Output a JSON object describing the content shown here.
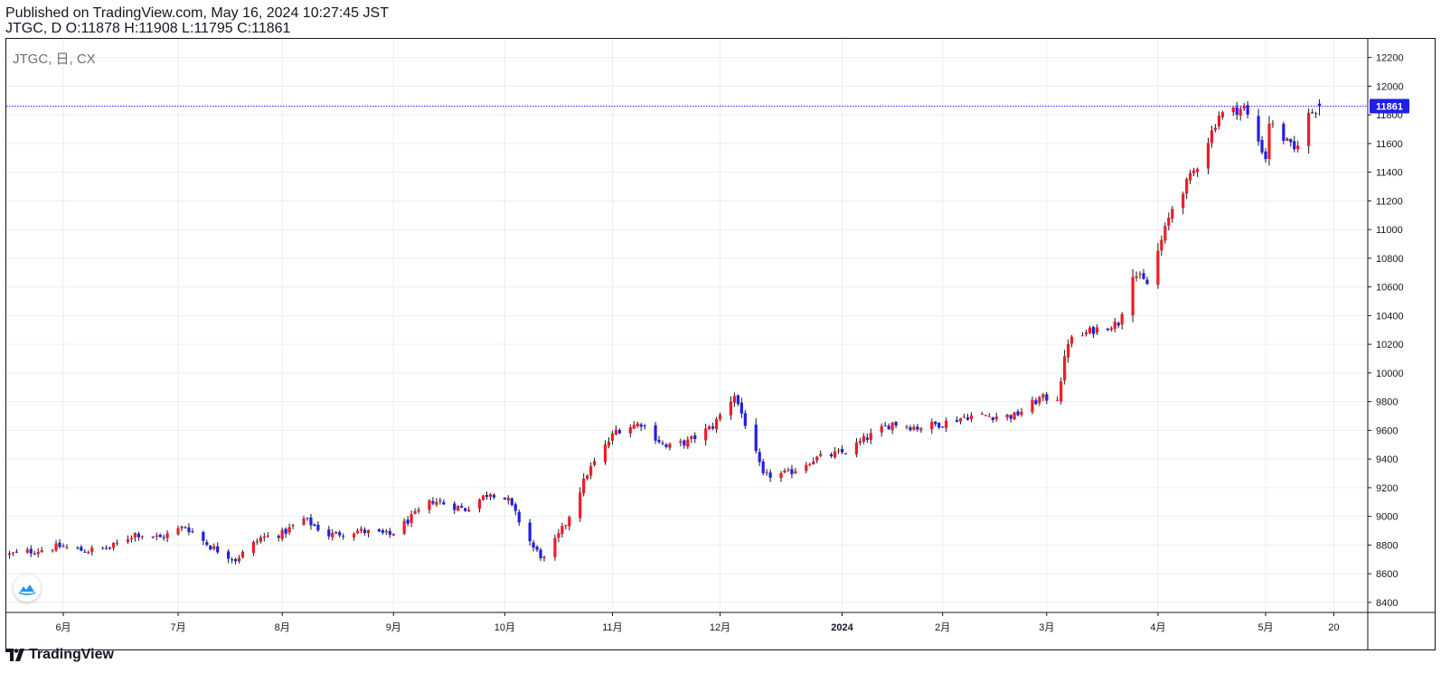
{
  "header": {
    "published": "Published on TradingView.com, May 16, 2024 10:27:45 JST",
    "ohlc": "JTGC, D O:11878 H:11908 L:11795 C:11861"
  },
  "symbol_label": "JTGC, 日, CX",
  "footer": {
    "brand": "TradingView"
  },
  "colors": {
    "up": "#ef1c24",
    "down": "#1f1fe6",
    "wick": "#131722",
    "grid": "#e9eef2",
    "price_line": "#1f1fe6",
    "price_tag_bg": "#1f1fe6",
    "price_tag_text": "#ffffff"
  },
  "chart_data": {
    "type": "candlestick",
    "interval": "日",
    "ylim": [
      8330,
      12330
    ],
    "y_ticks": [
      8400,
      8600,
      8800,
      9000,
      9200,
      9400,
      9600,
      9800,
      10000,
      10200,
      10400,
      10600,
      10800,
      11000,
      11200,
      11400,
      11600,
      11800,
      12000,
      12200
    ],
    "current_price": 11861,
    "current_price_label": "11861",
    "x_labels": [
      {
        "label": "6月",
        "date": "2023-06-01"
      },
      {
        "label": "7月",
        "date": "2023-07-03"
      },
      {
        "label": "8月",
        "date": "2023-08-01"
      },
      {
        "label": "9月",
        "date": "2023-09-01"
      },
      {
        "label": "10月",
        "date": "2023-10-02"
      },
      {
        "label": "11月",
        "date": "2023-11-01"
      },
      {
        "label": "12月",
        "date": "2023-12-01"
      },
      {
        "label": "2024",
        "date": "2024-01-04",
        "bold": true
      },
      {
        "label": "2月",
        "date": "2024-02-01"
      },
      {
        "label": "3月",
        "date": "2024-03-01"
      },
      {
        "label": "4月",
        "date": "2024-04-01"
      },
      {
        "label": "5月",
        "date": "2024-05-01"
      },
      {
        "label": "20",
        "date": "2024-05-20"
      }
    ],
    "anchors": [
      [
        "2023-05-17",
        8735
      ],
      [
        "2023-05-24",
        8760
      ],
      [
        "2023-05-31",
        8790
      ],
      [
        "2023-06-07",
        8760
      ],
      [
        "2023-06-14",
        8780
      ],
      [
        "2023-06-21",
        8880
      ],
      [
        "2023-06-28",
        8850
      ],
      [
        "2023-07-05",
        8930
      ],
      [
        "2023-07-12",
        8790
      ],
      [
        "2023-07-19",
        8700
      ],
      [
        "2023-07-26",
        8850
      ],
      [
        "2023-08-01",
        8880
      ],
      [
        "2023-08-07",
        8980
      ],
      [
        "2023-08-14",
        8870
      ],
      [
        "2023-08-22",
        8900
      ],
      [
        "2023-08-31",
        8870
      ],
      [
        "2023-09-06",
        8990
      ],
      [
        "2023-09-12",
        9110
      ],
      [
        "2023-09-21",
        9050
      ],
      [
        "2023-09-28",
        9170
      ],
      [
        "2023-10-03",
        9110
      ],
      [
        "2023-10-10",
        8780
      ],
      [
        "2023-10-13",
        8700
      ],
      [
        "2023-10-19",
        8950
      ],
      [
        "2023-10-25",
        9300
      ],
      [
        "2023-11-02",
        9600
      ],
      [
        "2023-11-09",
        9650
      ],
      [
        "2023-11-16",
        9480
      ],
      [
        "2023-11-22",
        9520
      ],
      [
        "2023-11-29",
        9630
      ],
      [
        "2023-12-05",
        9850
      ],
      [
        "2023-12-08",
        9650
      ],
      [
        "2023-12-13",
        9280
      ],
      [
        "2023-12-20",
        9300
      ],
      [
        "2023-12-27",
        9400
      ],
      [
        "2024-01-05",
        9450
      ],
      [
        "2024-01-11",
        9550
      ],
      [
        "2024-01-18",
        9650
      ],
      [
        "2024-01-25",
        9620
      ],
      [
        "2024-02-01",
        9650
      ],
      [
        "2024-02-08",
        9700
      ],
      [
        "2024-02-15",
        9700
      ],
      [
        "2024-02-21",
        9700
      ],
      [
        "2024-02-28",
        9820
      ],
      [
        "2024-03-04",
        9830
      ],
      [
        "2024-03-07",
        10220
      ],
      [
        "2024-03-14",
        10300
      ],
      [
        "2024-03-21",
        10350
      ],
      [
        "2024-03-25",
        10700
      ],
      [
        "2024-03-29",
        10620
      ],
      [
        "2024-04-05",
        11150
      ],
      [
        "2024-04-12",
        11450
      ],
      [
        "2024-04-18",
        11800
      ],
      [
        "2024-04-25",
        11850
      ],
      [
        "2024-05-01",
        11500
      ],
      [
        "2024-05-02",
        11750
      ],
      [
        "2024-05-09",
        11550
      ],
      [
        "2024-05-13",
        11800
      ],
      [
        "2024-05-16",
        11861
      ]
    ],
    "last_candle": {
      "date": "2024-05-16",
      "o": 11878,
      "h": 11908,
      "l": 11795,
      "c": 11861
    }
  }
}
